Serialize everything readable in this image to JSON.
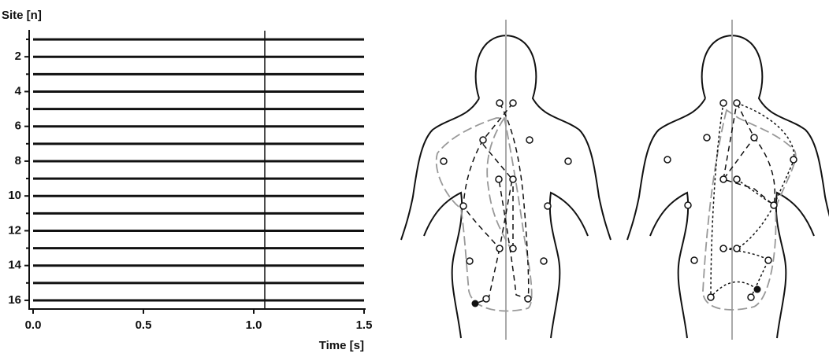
{
  "chart_data": {
    "type": "traces",
    "y_label": "Site [n]",
    "x_label": "Time [s]",
    "sites": [
      1,
      2,
      3,
      4,
      5,
      6,
      7,
      8,
      9,
      10,
      11,
      12,
      13,
      14,
      15,
      16
    ],
    "ylim": [
      16.5,
      0.5
    ],
    "yticks": [
      2,
      4,
      6,
      8,
      10,
      12,
      14,
      16
    ],
    "minor_yticks": [
      1,
      3,
      5,
      7,
      9,
      11,
      13,
      15
    ],
    "xlim": [
      0,
      1.5
    ],
    "xticks": [
      {
        "value": 0,
        "label": "0.0"
      },
      0.5,
      {
        "value": 1,
        "label": "1.0"
      },
      1.5
    ],
    "vline": 1.05,
    "color": "#111111"
  }
}
